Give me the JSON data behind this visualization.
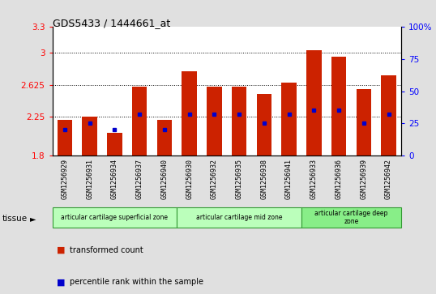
{
  "title": "GDS5433 / 1444661_at",
  "samples": [
    "GSM1256929",
    "GSM1256931",
    "GSM1256934",
    "GSM1256937",
    "GSM1256940",
    "GSM1256930",
    "GSM1256932",
    "GSM1256935",
    "GSM1256938",
    "GSM1256941",
    "GSM1256933",
    "GSM1256936",
    "GSM1256939",
    "GSM1256942"
  ],
  "transformed_count": [
    2.22,
    2.25,
    2.07,
    2.6,
    2.22,
    2.78,
    2.6,
    2.6,
    2.52,
    2.65,
    3.02,
    2.95,
    2.57,
    2.73
  ],
  "percentile_rank": [
    20,
    25,
    20,
    32,
    20,
    32,
    32,
    32,
    25,
    32,
    35,
    35,
    25,
    32
  ],
  "ymin": 1.8,
  "ymax": 3.3,
  "yticks": [
    1.8,
    2.25,
    2.625,
    3.0,
    3.3
  ],
  "ytick_labels": [
    "1.8",
    "2.25",
    "2.625",
    "3",
    "3.3"
  ],
  "right_yticks": [
    0,
    25,
    50,
    75,
    100
  ],
  "right_ytick_labels": [
    "0",
    "25",
    "50",
    "75",
    "100%"
  ],
  "bar_color": "#cc2200",
  "dot_color": "#0000cc",
  "groups": [
    {
      "label": "articular cartilage superficial zone",
      "start": 0,
      "end": 5,
      "color": "#bbffbb"
    },
    {
      "label": "articular cartilage mid zone",
      "start": 5,
      "end": 10,
      "color": "#bbffbb"
    },
    {
      "label": "articular cartilage deep\nzone",
      "start": 10,
      "end": 14,
      "color": "#88ee88"
    }
  ],
  "tissue_label": "tissue",
  "legend_items": [
    {
      "label": "transformed count",
      "color": "#cc2200"
    },
    {
      "label": "percentile rank within the sample",
      "color": "#0000cc"
    }
  ],
  "bg_color": "#e0e0e0",
  "plot_bg": "#ffffff"
}
